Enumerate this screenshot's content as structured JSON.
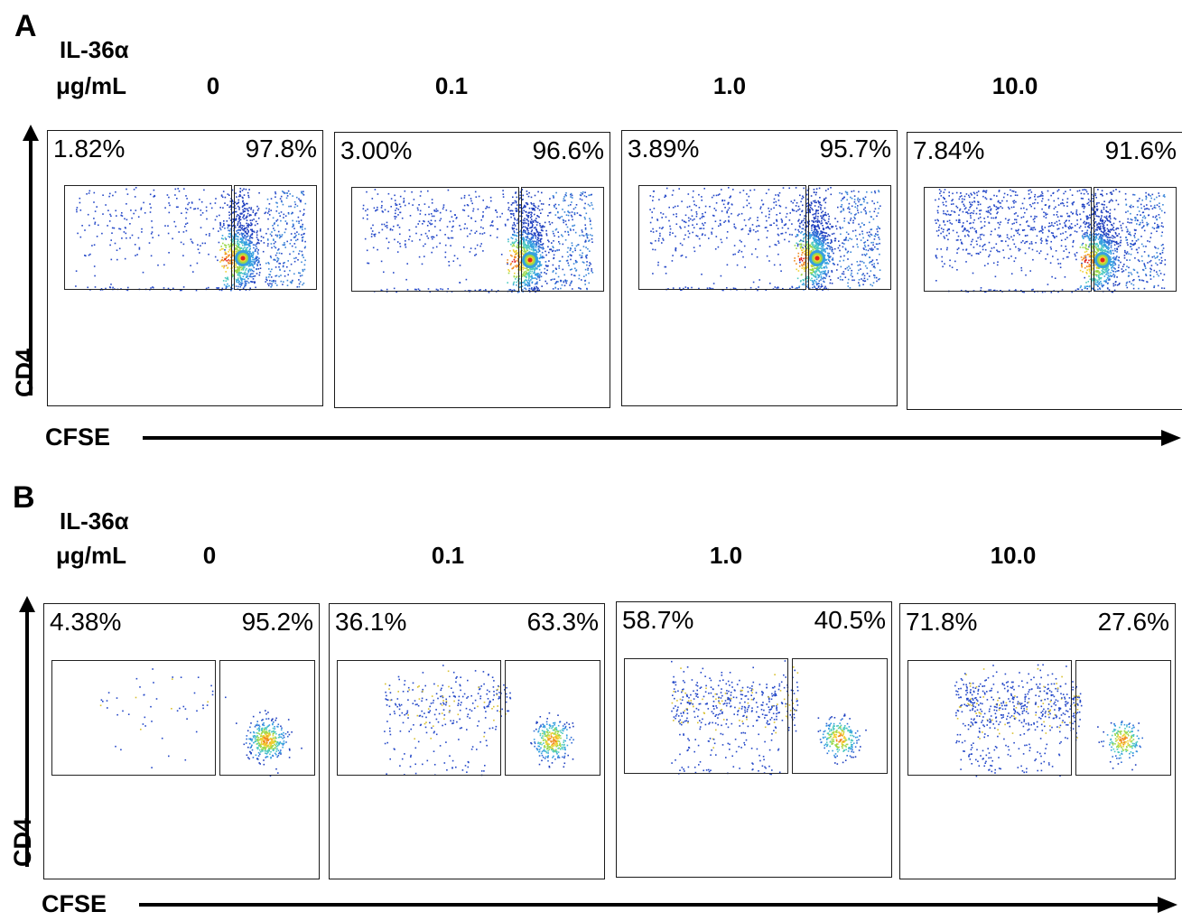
{
  "chart_data": [
    {
      "type": "scatter",
      "panel_label": "A",
      "treatment_label": "IL-36α",
      "unit_label": "μg/mL",
      "ylabel": "CD4",
      "xlabel": "CFSE",
      "concentrations": [
        "0",
        "0.1",
        "1.0",
        "10.0"
      ],
      "panels": [
        {
          "concentration": "0",
          "left_gate_pct": "1.82%",
          "right_gate_pct": "97.8%"
        },
        {
          "concentration": "0.1",
          "left_gate_pct": "3.00%",
          "right_gate_pct": "96.6%"
        },
        {
          "concentration": "1.0",
          "left_gate_pct": "3.89%",
          "right_gate_pct": "95.7%"
        },
        {
          "concentration": "10.0",
          "left_gate_pct": "7.84%",
          "right_gate_pct": "91.6%"
        }
      ]
    },
    {
      "type": "scatter",
      "panel_label": "B",
      "treatment_label": "IL-36α",
      "unit_label": "μg/mL",
      "ylabel": "CD4",
      "xlabel": "CFSE",
      "concentrations": [
        "0",
        "0.1",
        "1.0",
        "10.0"
      ],
      "panels": [
        {
          "concentration": "0",
          "left_gate_pct": "4.38%",
          "right_gate_pct": "95.2%"
        },
        {
          "concentration": "0.1",
          "left_gate_pct": "36.1%",
          "right_gate_pct": "63.3%"
        },
        {
          "concentration": "1.0",
          "left_gate_pct": "58.7%",
          "right_gate_pct": "40.5%"
        },
        {
          "concentration": "10.0",
          "left_gate_pct": "71.8%",
          "right_gate_pct": "27.6%"
        }
      ]
    }
  ]
}
